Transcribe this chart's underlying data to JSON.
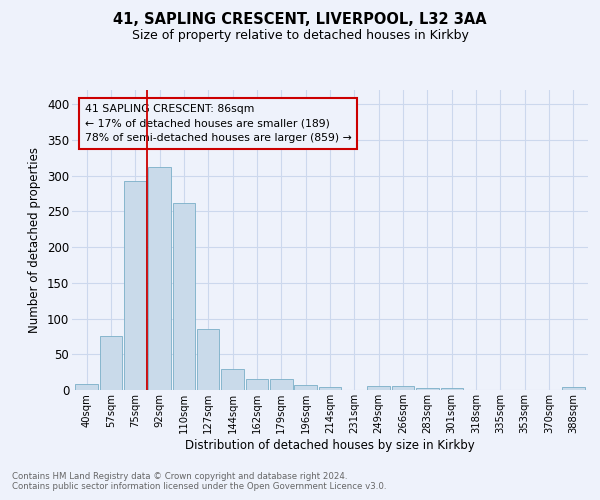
{
  "title1": "41, SAPLING CRESCENT, LIVERPOOL, L32 3AA",
  "title2": "Size of property relative to detached houses in Kirkby",
  "xlabel": "Distribution of detached houses by size in Kirkby",
  "ylabel": "Number of detached properties",
  "bin_labels": [
    "40sqm",
    "57sqm",
    "75sqm",
    "92sqm",
    "110sqm",
    "127sqm",
    "144sqm",
    "162sqm",
    "179sqm",
    "196sqm",
    "214sqm",
    "231sqm",
    "249sqm",
    "266sqm",
    "283sqm",
    "301sqm",
    "318sqm",
    "335sqm",
    "353sqm",
    "370sqm",
    "388sqm"
  ],
  "bar_values": [
    8,
    75,
    292,
    312,
    262,
    85,
    29,
    15,
    15,
    7,
    4,
    0,
    5,
    5,
    3,
    3,
    0,
    0,
    0,
    0,
    4
  ],
  "bar_color": "#c9daea",
  "bar_edge_color": "#7aafc8",
  "grid_color": "#ccd8ed",
  "background_color": "#eef2fb",
  "annotation_box_color": "#cc0000",
  "annotation_line_color": "#cc0000",
  "property_bin_index": 3,
  "annotation_text1": "41 SAPLING CRESCENT: 86sqm",
  "annotation_text2": "← 17% of detached houses are smaller (189)",
  "annotation_text3": "78% of semi-detached houses are larger (859) →",
  "footnote1": "Contains HM Land Registry data © Crown copyright and database right 2024.",
  "footnote2": "Contains public sector information licensed under the Open Government Licence v3.0.",
  "ylim": [
    0,
    420
  ],
  "yticks": [
    0,
    50,
    100,
    150,
    200,
    250,
    300,
    350,
    400
  ]
}
